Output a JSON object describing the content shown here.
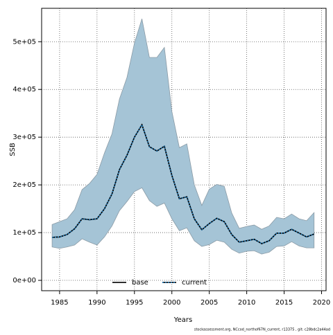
{
  "chart_data": {
    "type": "line",
    "x_label": "Years",
    "y_label": "SSB",
    "footer": "stockassessment.org, NCcod_northof67N_current, r13375 , git: c28bdc2a44ad",
    "x": [
      1984,
      1985,
      1986,
      1987,
      1988,
      1989,
      1990,
      1991,
      1992,
      1993,
      1994,
      1995,
      1996,
      1997,
      1998,
      1999,
      2000,
      2001,
      2002,
      2003,
      2004,
      2005,
      2006,
      2007,
      2008,
      2009,
      2010,
      2011,
      2012,
      2013,
      2014,
      2015,
      2016,
      2017,
      2018,
      2019
    ],
    "band": {
      "color": "#a5c4d6",
      "upper": [
        117000,
        123000,
        129000,
        148000,
        190000,
        203000,
        222000,
        267000,
        307000,
        380000,
        425000,
        497000,
        548000,
        467000,
        467000,
        488000,
        354000,
        278000,
        286000,
        200000,
        157000,
        191000,
        201000,
        197000,
        141000,
        109000,
        113000,
        116000,
        107000,
        114000,
        132000,
        129000,
        139000,
        129000,
        125000,
        142000
      ],
      "lower": [
        70000,
        67000,
        70000,
        74000,
        87000,
        80000,
        74000,
        91000,
        114000,
        146000,
        165000,
        186000,
        194000,
        167000,
        155000,
        162000,
        129000,
        104000,
        110000,
        83000,
        71000,
        75000,
        84000,
        80000,
        65000,
        57000,
        61000,
        62000,
        55000,
        59000,
        71000,
        72000,
        81000,
        72000,
        68000,
        68000
      ]
    },
    "series": [
      {
        "name": "base",
        "color": "#000000",
        "dash": "solid",
        "values": [
          90000,
          91000,
          96000,
          108000,
          129000,
          127000,
          129000,
          150000,
          181000,
          232000,
          262000,
          300000,
          326000,
          280000,
          271000,
          281000,
          220000,
          171000,
          175000,
          129000,
          106000,
          119000,
          130000,
          123000,
          96000,
          80000,
          83000,
          86000,
          77000,
          83000,
          99000,
          99000,
          107000,
          99000,
          91000,
          97000
        ]
      },
      {
        "name": "current",
        "color": "#1f77b4",
        "dash": "dotted",
        "values": [
          90000,
          91000,
          96000,
          108000,
          129000,
          127000,
          129000,
          150000,
          181000,
          232000,
          262000,
          300000,
          326000,
          280000,
          271000,
          281000,
          220000,
          171000,
          175000,
          129000,
          106000,
          119000,
          130000,
          123000,
          96000,
          80000,
          83000,
          86000,
          77000,
          83000,
          99000,
          99000,
          107000,
          99000,
          91000,
          97000
        ]
      }
    ],
    "xlim": [
      1982.6,
      2020.6
    ],
    "ylim": [
      -21700,
      570000
    ],
    "xticks": [
      1985,
      1990,
      1995,
      2000,
      2005,
      2010,
      2015,
      2020
    ],
    "yticks": [
      {
        "value": 0,
        "label": "0e+00"
      },
      {
        "value": 100000,
        "label": "1e+05"
      },
      {
        "value": 200000,
        "label": "2e+05"
      },
      {
        "value": 300000,
        "label": "3e+05"
      },
      {
        "value": 400000,
        "label": "4e+05"
      },
      {
        "value": 500000,
        "label": "5e+05"
      }
    ],
    "grid": true,
    "legend": "bottom"
  }
}
